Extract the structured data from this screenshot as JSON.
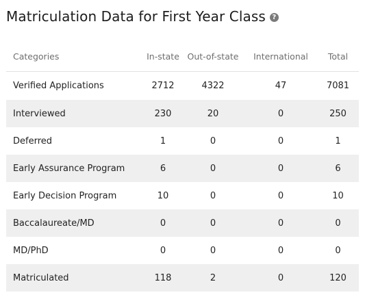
{
  "title": "Matriculation Data for First Year Class",
  "help_icon": "question-circle-icon",
  "columns": [
    "Categories",
    "In-state",
    "Out-of-state",
    "International",
    "Total"
  ],
  "rows": [
    {
      "category": "Verified Applications",
      "in_state": "2712",
      "out_of_state": "4322",
      "international": "47",
      "total": "7081"
    },
    {
      "category": "Interviewed",
      "in_state": "230",
      "out_of_state": "20",
      "international": "0",
      "total": "250"
    },
    {
      "category": "Deferred",
      "in_state": "1",
      "out_of_state": "0",
      "international": "0",
      "total": "1"
    },
    {
      "category": "Early Assurance Program",
      "in_state": "6",
      "out_of_state": "0",
      "international": "0",
      "total": "6"
    },
    {
      "category": "Early Decision Program",
      "in_state": "10",
      "out_of_state": "0",
      "international": "0",
      "total": "10"
    },
    {
      "category": "Baccalaureate/MD",
      "in_state": "0",
      "out_of_state": "0",
      "international": "0",
      "total": "0"
    },
    {
      "category": "MD/PhD",
      "in_state": "0",
      "out_of_state": "0",
      "international": "0",
      "total": "0"
    },
    {
      "category": "Matriculated",
      "in_state": "118",
      "out_of_state": "2",
      "international": "0",
      "total": "120"
    }
  ],
  "colors": {
    "stripe": "#efefef",
    "header_text": "#6e6e6e",
    "icon_bg": "#7a7a7a"
  }
}
